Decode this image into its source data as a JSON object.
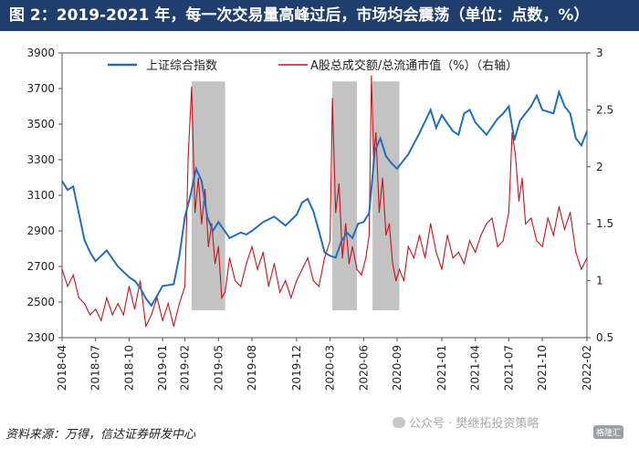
{
  "header": {
    "title": "图 2：2019-2021 年，每一次交易量高峰过后，市场均会震荡（单位：点数，%）"
  },
  "footer": {
    "source": "资料来源：万得，信达证券研发中心",
    "watermark": "公众号 · 樊继拓投资策略",
    "badge": "格隆汇"
  },
  "colors": {
    "series_blue": "#1f6fbd",
    "series_red": "#c0161d",
    "shade": "#c3c3c3",
    "title_bg": "#1f3e6e"
  },
  "chart_data": {
    "type": "line",
    "title": "图 2：2019-2021 年，每一次交易量高峰过后，市场均会震荡（单位：点数，%）",
    "x_ticks": [
      "2018-04",
      "2018-07",
      "2018-10",
      "2019-01",
      "2019-02",
      "2019-05",
      "2019-08",
      "2019-12",
      "2020-03",
      "2020-06",
      "2020-09",
      "2021-01",
      "2021-04",
      "2021-07",
      "2021-10",
      "2022-02"
    ],
    "x_tick_pos": [
      0,
      3,
      6,
      9,
      11,
      14,
      17,
      21,
      24,
      27,
      30,
      34,
      37,
      40,
      43,
      47
    ],
    "y_left": {
      "lim": [
        2300,
        3900
      ],
      "ticks": [
        2300,
        2500,
        2700,
        2900,
        3100,
        3300,
        3500,
        3700,
        3900
      ]
    },
    "y_right": {
      "lim": [
        0.5,
        3
      ],
      "ticks": [
        "0.5",
        "1",
        "1.5",
        "2",
        "2.5",
        "3"
      ],
      "values": [
        0.5,
        1,
        1.5,
        2,
        2.5,
        3
      ]
    },
    "shaded_ranges": [
      [
        11.6,
        14.6
      ],
      [
        24.2,
        26.4
      ],
      [
        27.8,
        30.2
      ]
    ],
    "series": [
      {
        "name": "上证综合指数",
        "axis": "left",
        "t": [
          0,
          0.5,
          1,
          2,
          2.5,
          3,
          4,
          5,
          6,
          6.5,
          7,
          7.5,
          8,
          9,
          10,
          10.5,
          11,
          11.5,
          12,
          12.5,
          13,
          13.5,
          14,
          15,
          16,
          16.5,
          17,
          18,
          19,
          20,
          21,
          21.5,
          22,
          22.5,
          23,
          23.5,
          24,
          24.5,
          25,
          25.5,
          26,
          26.5,
          27,
          27.5,
          28,
          28.5,
          29,
          29.5,
          30,
          31,
          32,
          33,
          33.5,
          34,
          35,
          35.5,
          36,
          36.5,
          37,
          38,
          39,
          39.5,
          40,
          40.5,
          41,
          42,
          42.5,
          43,
          44,
          44.5,
          45,
          45.5,
          46,
          46.5,
          47
        ],
        "values": [
          3180,
          3130,
          3150,
          2850,
          2780,
          2730,
          2790,
          2700,
          2640,
          2620,
          2580,
          2520,
          2480,
          2590,
          2600,
          2760,
          2980,
          3100,
          3250,
          3180,
          2980,
          2900,
          2950,
          2860,
          2890,
          2880,
          2900,
          2950,
          2980,
          2930,
          2990,
          3060,
          3080,
          3010,
          2900,
          2780,
          2760,
          2750,
          2840,
          2890,
          2860,
          2940,
          2950,
          3000,
          3350,
          3420,
          3320,
          3280,
          3250,
          3330,
          3450,
          3580,
          3480,
          3550,
          3460,
          3440,
          3560,
          3580,
          3510,
          3440,
          3530,
          3560,
          3600,
          3410,
          3520,
          3600,
          3660,
          3580,
          3560,
          3680,
          3600,
          3560,
          3420,
          3380,
          3460
        ]
      },
      {
        "name": "A股总成交额/总流通市值（%）（右轴）",
        "axis": "right",
        "t": [
          0,
          0.5,
          1,
          1.5,
          2,
          2.5,
          3,
          3.5,
          4,
          4.5,
          5,
          5.5,
          6,
          6.5,
          7,
          7.5,
          8,
          8.5,
          9,
          9.5,
          10,
          10.5,
          11,
          11.3,
          11.6,
          11.9,
          12.2,
          12.5,
          12.8,
          13.1,
          13.4,
          13.7,
          14,
          14.3,
          14.6,
          15,
          15.5,
          16,
          16.5,
          17,
          17.5,
          18,
          18.5,
          19,
          19.5,
          20,
          20.5,
          21,
          21.5,
          22,
          22.5,
          23,
          23.5,
          24,
          24.2,
          24.5,
          24.8,
          25.1,
          25.4,
          25.7,
          26,
          26.4,
          26.8,
          27.2,
          27.5,
          27.7,
          27.9,
          28.1,
          28.4,
          28.7,
          29,
          29.3,
          29.6,
          29.9,
          30.2,
          30.6,
          31,
          31.5,
          32,
          32.5,
          33,
          33.5,
          34,
          34.5,
          35,
          35.5,
          36,
          36.5,
          37,
          37.5,
          38,
          38.5,
          39,
          39.5,
          40,
          40.3,
          40.6,
          40.9,
          41.2,
          41.5,
          42,
          42.5,
          43,
          43.5,
          44,
          44.5,
          45,
          45.5,
          46,
          46.5,
          47
        ],
        "values": [
          1.1,
          0.95,
          1.05,
          0.85,
          0.8,
          0.7,
          0.75,
          0.65,
          0.85,
          0.7,
          0.8,
          0.7,
          0.95,
          0.75,
          1.0,
          0.6,
          0.7,
          0.85,
          0.65,
          0.8,
          0.6,
          0.8,
          0.95,
          2.1,
          2.7,
          1.6,
          1.9,
          1.5,
          1.8,
          1.3,
          1.5,
          1.15,
          1.3,
          0.85,
          0.9,
          1.2,
          1.0,
          0.95,
          1.15,
          1.3,
          1.1,
          1.25,
          0.95,
          1.15,
          0.9,
          1.0,
          0.85,
          1.0,
          1.1,
          1.2,
          1.0,
          0.95,
          1.2,
          1.35,
          2.6,
          1.6,
          1.85,
          1.2,
          1.5,
          1.15,
          1.3,
          1.1,
          1.05,
          1.2,
          1.4,
          2.8,
          2.1,
          2.3,
          1.6,
          1.9,
          1.4,
          1.5,
          1.15,
          1.0,
          1.1,
          1.0,
          1.3,
          1.2,
          1.4,
          1.2,
          1.5,
          1.25,
          1.1,
          1.4,
          1.2,
          1.25,
          1.15,
          1.35,
          1.25,
          1.4,
          1.5,
          1.55,
          1.3,
          1.35,
          1.6,
          2.3,
          2.1,
          1.7,
          1.9,
          1.5,
          1.55,
          1.35,
          1.3,
          1.55,
          1.4,
          1.65,
          1.45,
          1.6,
          1.25,
          1.1,
          1.2
        ]
      }
    ]
  }
}
